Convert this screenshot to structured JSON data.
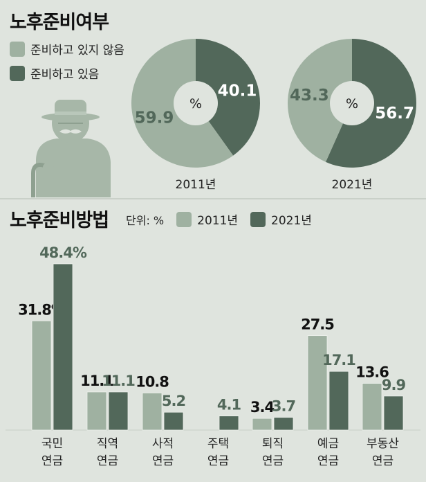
{
  "colors": {
    "background": "#dfe4de",
    "light": "#9fb1a1",
    "dark": "#52685a",
    "figure": "#a7b7a8"
  },
  "section1": {
    "title": "노후준비여부",
    "legend": [
      {
        "label": "준비하고 있지 않음",
        "color": "#9fb1a1"
      },
      {
        "label": "준비하고 있음",
        "color": "#52685a"
      }
    ]
  },
  "section2": {
    "title": "노후준비방법",
    "unit_label": "단위: %",
    "legend": [
      {
        "label": "2011년",
        "color": "#9fb1a1"
      },
      {
        "label": "2021년",
        "color": "#52685a"
      }
    ]
  },
  "chart_data": [
    {
      "type": "pie",
      "title": "",
      "year_label": "2011년",
      "center_label": "%",
      "slices": [
        {
          "label": "준비하고 있지 않음",
          "value": 59.9,
          "color": "#9fb1a1"
        },
        {
          "label": "준비하고 있음",
          "value": 40.1,
          "color": "#52685a"
        }
      ]
    },
    {
      "type": "pie",
      "title": "",
      "year_label": "2021년",
      "center_label": "%",
      "slices": [
        {
          "label": "준비하고 있지 않음",
          "value": 43.3,
          "color": "#9fb1a1"
        },
        {
          "label": "준비하고 있음",
          "value": 56.7,
          "color": "#52685a"
        }
      ]
    },
    {
      "type": "bar",
      "title": "노후준비방법",
      "categories": [
        [
          "국민",
          "연금"
        ],
        [
          "직역",
          "연금"
        ],
        [
          "사적",
          "연금"
        ],
        [
          "주택",
          "연금"
        ],
        [
          "퇴직",
          "연금"
        ],
        [
          "예금",
          "연금"
        ],
        [
          "부동산",
          "연금"
        ]
      ],
      "series": [
        {
          "name": "2011년",
          "color": "#9fb1a1",
          "values": [
            31.8,
            11.1,
            10.8,
            null,
            3.4,
            27.5,
            13.6
          ],
          "labels": [
            "31.8%",
            "11.1",
            "10.8",
            "",
            "3.4",
            "27.5",
            "13.6"
          ]
        },
        {
          "name": "2021년",
          "color": "#52685a",
          "values": [
            48.4,
            11.1,
            5.2,
            4.1,
            3.7,
            17.1,
            9.9
          ],
          "labels": [
            "48.4%",
            "11.1",
            "5.2",
            "4.1",
            "3.7",
            "17.1",
            "9.9"
          ]
        }
      ],
      "ylim": [
        0,
        48.4
      ]
    }
  ]
}
